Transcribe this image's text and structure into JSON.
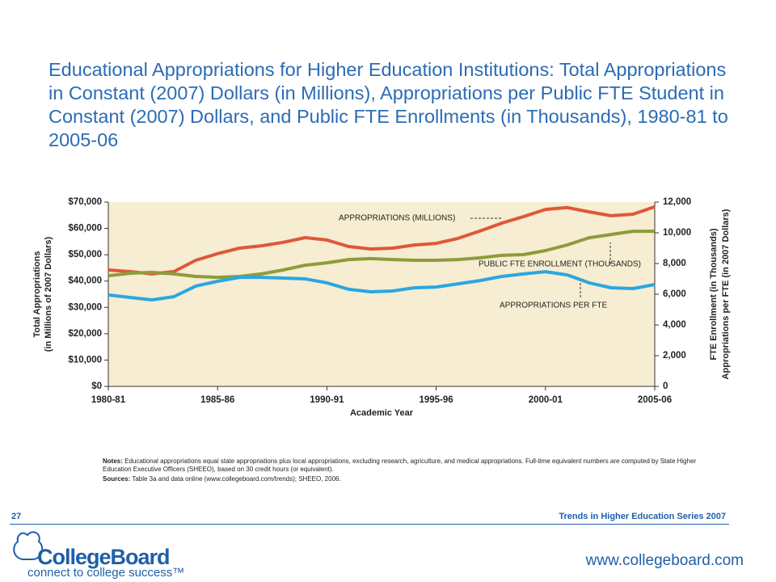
{
  "chart_data": {
    "type": "line",
    "title": "Educational Appropriations for Higher Education Institutions: Total Appropriations in Constant (2007) Dollars (in Millions), Appropriations per Public FTE Student in Constant (2007) Dollars, and Public FTE Enrollments (in Thousands), 1980-81 to 2005-06",
    "y_label": [
      "Total Appropriations",
      "(in Millions of 2007 Dollars)"
    ],
    "y2_label": [
      "FTE Enrollment (in Thousands)",
      "Appropriations per FTE (in 2007 Dollars)"
    ],
    "x_label": "Academic Year",
    "categories": [
      "1980-81",
      null,
      null,
      null,
      null,
      "1985-86",
      null,
      null,
      null,
      null,
      "1990-91",
      null,
      null,
      null,
      null,
      "1995-96",
      null,
      null,
      null,
      null,
      "2000-01",
      null,
      null,
      null,
      null,
      "2005-06"
    ],
    "series": [
      {
        "name": "APPROPRIATIONS (MILLIONS)",
        "color": "#e0573a",
        "axis": "y",
        "values": [
          44200,
          43600,
          42700,
          43600,
          47900,
          50400,
          52500,
          53400,
          54700,
          56500,
          55600,
          53100,
          52200,
          52500,
          53700,
          54300,
          56200,
          59000,
          62000,
          64500,
          67200,
          67900,
          66300,
          64800,
          65400,
          68200
        ]
      },
      {
        "name": "PUBLIC FTE ENROLLMENT (THOUSANDS)",
        "color": "#8e9c3a",
        "axis": "y2",
        "values": [
          7200,
          7370,
          7420,
          7320,
          7160,
          7100,
          7160,
          7320,
          7580,
          7890,
          8050,
          8260,
          8320,
          8260,
          8210,
          8210,
          8260,
          8370,
          8530,
          8580,
          8840,
          9210,
          9680,
          9890,
          10100,
          10100
        ]
      },
      {
        "name": "APPROPRIATIONS PER FTE",
        "color": "#2aa7e0",
        "axis": "y2",
        "values": [
          5950,
          5790,
          5630,
          5840,
          6530,
          6840,
          7100,
          7100,
          7050,
          7000,
          6740,
          6320,
          6160,
          6210,
          6420,
          6470,
          6680,
          6890,
          7160,
          7320,
          7470,
          7260,
          6740,
          6420,
          6370,
          6630
        ]
      }
    ],
    "ylim": [
      0,
      70000
    ],
    "yticks": [
      {
        "value": 0,
        "label": "$0"
      },
      {
        "value": 10000,
        "label": "$10,000"
      },
      {
        "value": 20000,
        "label": "$20,000"
      },
      {
        "value": 30000,
        "label": "$30,000"
      },
      {
        "value": 40000,
        "label": "$40,000"
      },
      {
        "value": 50000,
        "label": "$50,000"
      },
      {
        "value": 60000,
        "label": "$60,000"
      },
      {
        "value": 70000,
        "label": "$70,000"
      }
    ],
    "y2lim": [
      0,
      12000
    ],
    "y2ticks": [
      0,
      {
        "value": 2000,
        "label": "2,000"
      },
      {
        "value": 4000,
        "label": "4,000"
      },
      {
        "value": 6000,
        "label": "6,000"
      },
      {
        "value": 8000,
        "label": "8,000"
      },
      {
        "value": 10000,
        "label": "10,000"
      },
      {
        "value": 12000,
        "label": "12,000"
      }
    ],
    "background": "#f6edd2"
  },
  "notes": {
    "label": "Notes:",
    "text": "Educational appropriations equal state appropriations plus local appropriations, excluding research, agriculture, and medical appropriations. Full-time equivalent numbers are computed by State Higher Education Executive Officers (SHEEO), based on 30 credit hours (or equivalent)."
  },
  "sources": {
    "label": "Sources:",
    "text": "Table 3a and data online (www.collegeboard.com/trends); SHEEO, 2006."
  },
  "footer": {
    "page": "27",
    "series": "Trends in Higher Education Series 2007",
    "brand": "CollegeBoard",
    "tagline": "connect to college success™",
    "url": "www.collegeboard.com"
  }
}
